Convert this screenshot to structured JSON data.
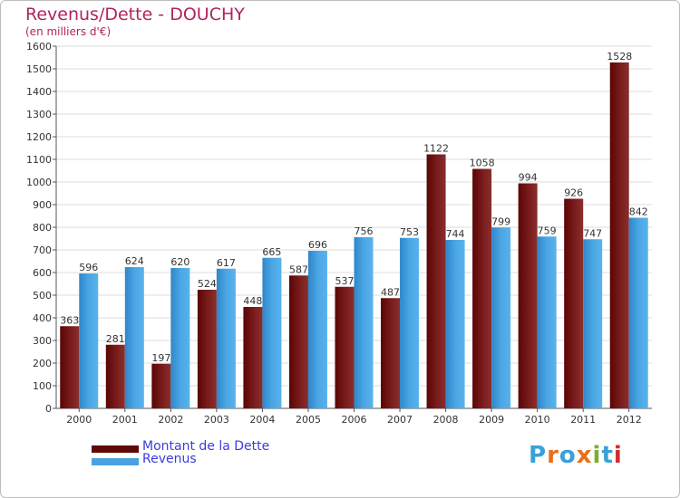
{
  "header": {
    "title": "Revenus/Dette - DOUCHY",
    "subtitle": "(en milliers d'€)"
  },
  "chart_data": {
    "type": "bar",
    "title": "Revenus/Dette - DOUCHY",
    "ylabel": "(en milliers d'€)",
    "xlabel": "",
    "categories": [
      "2000",
      "2001",
      "2002",
      "2003",
      "2004",
      "2005",
      "2006",
      "2007",
      "2008",
      "2009",
      "2010",
      "2011",
      "2012"
    ],
    "series": [
      {
        "name": "Montant de la Dette",
        "color": "#7a1a1a",
        "values": [
          363,
          281,
          197,
          524,
          448,
          587,
          537,
          487,
          1122,
          1058,
          994,
          926,
          1528
        ]
      },
      {
        "name": "Revenus",
        "color": "#4aa3e0",
        "values": [
          596,
          624,
          620,
          617,
          665,
          696,
          756,
          753,
          744,
          799,
          759,
          747,
          842
        ]
      }
    ],
    "ylim": [
      0,
      1600
    ],
    "yticks": [
      0,
      100,
      200,
      300,
      400,
      500,
      600,
      700,
      800,
      900,
      1000,
      1100,
      1200,
      1300,
      1400,
      1500,
      1600
    ],
    "grid": true,
    "legend": "bottom-left"
  },
  "legend": {
    "items": [
      {
        "label": "Montant de la Dette",
        "color": "#5e0808"
      },
      {
        "label": "Revenus",
        "color": "#4aa3e0"
      }
    ]
  },
  "logo": {
    "letters": [
      "P",
      "r",
      "o",
      "x",
      "i",
      "t",
      "i"
    ],
    "colors": [
      "#3aa0d8",
      "#e8701a",
      "#3aa0d8",
      "#e8701a",
      "#7ab030",
      "#3aa0d8",
      "#d02d2d"
    ]
  }
}
